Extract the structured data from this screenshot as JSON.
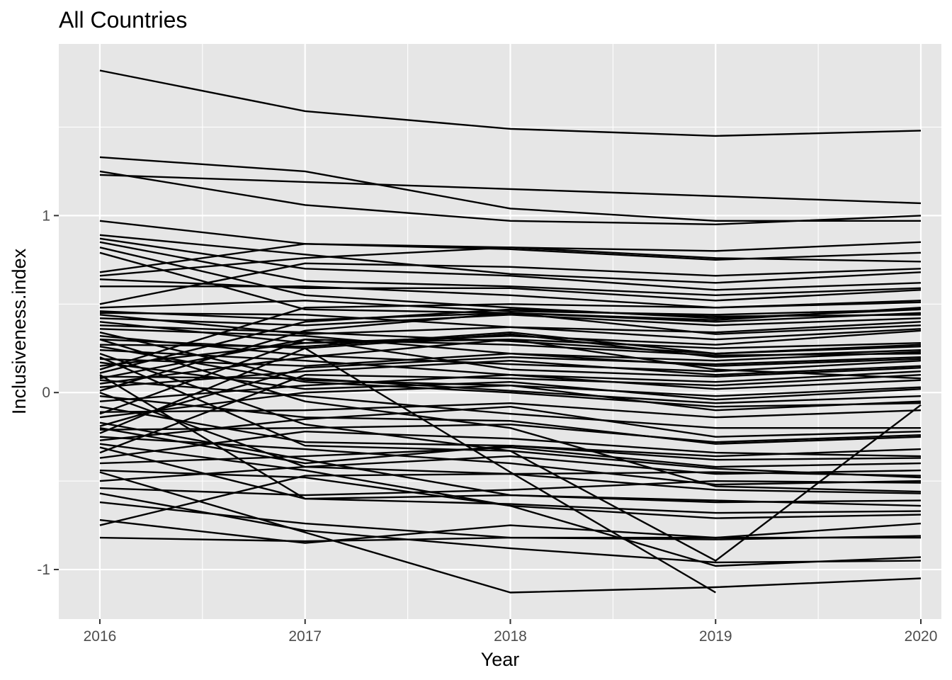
{
  "chart_data": {
    "type": "line",
    "title": "All Countries",
    "xlabel": "Year",
    "ylabel": "Inclusiveness.index",
    "x": [
      2016,
      2017,
      2018,
      2019,
      2020
    ],
    "x_ticks": [
      "2016",
      "2017",
      "2018",
      "2019",
      "2020"
    ],
    "y_ticks": [
      {
        "value": 1,
        "label": "1"
      },
      {
        "value": 0,
        "label": "0"
      },
      {
        "value": -1,
        "label": "-1"
      }
    ],
    "xlim": [
      2015.8,
      2020.1
    ],
    "ylim": [
      -1.28,
      1.97
    ],
    "grid": true,
    "line_color": "#000000",
    "panel_color": "#e6e6e6",
    "grid_color": "#ffffff",
    "series": [
      {
        "values": [
          1.82,
          1.59,
          1.49,
          1.45,
          1.48
        ]
      },
      {
        "values": [
          1.33,
          1.25,
          1.04,
          0.97,
          0.97
        ]
      },
      {
        "values": [
          1.25,
          1.06,
          0.97,
          0.95,
          1.0
        ]
      },
      {
        "values": [
          1.23,
          1.19,
          1.15,
          1.11,
          1.07
        ]
      },
      {
        "values": [
          0.97,
          0.84,
          0.82,
          0.8,
          0.85
        ]
      },
      {
        "values": [
          0.89,
          0.78,
          0.67,
          0.62,
          0.68
        ]
      },
      {
        "values": [
          0.87,
          0.7,
          0.66,
          0.58,
          0.62
        ]
      },
      {
        "values": [
          0.85,
          0.63,
          0.6,
          0.55,
          0.59
        ]
      },
      {
        "values": [
          0.82,
          0.55,
          0.48,
          0.42,
          0.47
        ]
      },
      {
        "values": [
          0.79,
          0.47,
          0.45,
          0.4,
          0.45
        ]
      },
      {
        "values": [
          0.68,
          0.84,
          0.81,
          0.75,
          0.79
        ]
      },
      {
        "values": [
          0.66,
          0.76,
          0.82,
          0.76,
          0.74
        ]
      },
      {
        "values": [
          0.64,
          0.59,
          0.59,
          0.52,
          0.58
        ]
      },
      {
        "values": [
          0.6,
          0.6,
          0.55,
          0.48,
          0.52
        ]
      },
      {
        "values": [
          0.5,
          0.73,
          0.71,
          0.66,
          0.7
        ]
      },
      {
        "values": [
          0.48,
          0.52,
          0.46,
          0.44,
          0.47
        ]
      },
      {
        "values": [
          0.46,
          0.41,
          0.45,
          0.41,
          0.48
        ]
      },
      {
        "values": [
          0.44,
          0.33,
          0.37,
          0.34,
          0.4
        ]
      },
      {
        "values": [
          0.42,
          0.38,
          0.44,
          0.38,
          0.42
        ]
      },
      {
        "values": [
          0.4,
          0.28,
          0.32,
          0.27,
          0.35
        ]
      },
      {
        "values": [
          0.38,
          0.34,
          0.29,
          0.22,
          0.27
        ]
      },
      {
        "values": [
          0.36,
          0.32,
          0.22,
          0.18,
          0.23
        ]
      },
      {
        "values": [
          0.34,
          0.07,
          0.04,
          -0.02,
          0.03
        ]
      },
      {
        "values": [
          0.32,
          0.21,
          0.16,
          0.12,
          0.18
        ]
      },
      {
        "values": [
          0.3,
          -0.05,
          -0.2,
          -0.53,
          -0.56
        ]
      },
      {
        "values": [
          0.27,
          0.26,
          0.34,
          0.22,
          0.26
        ]
      },
      {
        "values": [
          0.24,
          0.18,
          0.1,
          0.06,
          0.12
        ]
      },
      {
        "values": [
          0.22,
          -0.18,
          -0.33,
          -0.43,
          -0.48
        ]
      },
      {
        "values": [
          0.19,
          0.15,
          0.22,
          0.15,
          0.19
        ]
      },
      {
        "values": [
          0.17,
          0.02,
          0.06,
          -0.04,
          0.02
        ]
      },
      {
        "values": [
          0.15,
          0.28,
          0.3,
          0.25,
          0.28
        ]
      },
      {
        "values": [
          0.13,
          0.48,
          0.5,
          0.48,
          0.51
        ]
      },
      {
        "values": [
          0.11,
          0.4,
          0.47,
          0.43,
          0.44
        ]
      },
      {
        "values": [
          0.09,
          0.08,
          0.01,
          -0.06,
          -0.02
        ]
      },
      {
        "values": [
          0.07,
          -0.02,
          -0.12,
          -0.2,
          -0.2
        ]
      },
      {
        "values": [
          0.05,
          0.2,
          0.3,
          0.13,
          0.08
        ]
      },
      {
        "values": [
          0.03,
          0.12,
          0.18,
          0.1,
          0.15
        ]
      },
      {
        "values": [
          0.01,
          0.35,
          0.45,
          0.33,
          0.38
        ]
      },
      {
        "values": [
          -0.02,
          -0.14,
          -0.16,
          -0.29,
          -0.25
        ]
      },
      {
        "values": [
          -0.05,
          0.04,
          0.1,
          0.02,
          0.07
        ]
      },
      {
        "values": [
          -0.08,
          -0.28,
          -0.3,
          -0.36,
          -0.32
        ]
      },
      {
        "values": [
          -0.11,
          -0.1,
          -0.06,
          -0.14,
          -0.1
        ]
      },
      {
        "values": [
          -0.14,
          0.0,
          0.04,
          -0.1,
          -0.05
        ]
      },
      {
        "values": [
          -0.17,
          -0.38,
          -0.58,
          -0.62,
          -0.61
        ]
      },
      {
        "values": [
          -0.19,
          0.14,
          0.2,
          0.16,
          0.2
        ]
      },
      {
        "values": [
          -0.21,
          -0.2,
          -0.18,
          -0.28,
          -0.24
        ]
      },
      {
        "values": [
          -0.23,
          0.25,
          0.33,
          0.2,
          0.24
        ]
      },
      {
        "values": [
          -0.25,
          -0.32,
          -0.4,
          -0.52,
          -0.5
        ]
      },
      {
        "values": [
          -0.27,
          -0.15,
          -0.08,
          -0.25,
          -0.22
        ]
      },
      {
        "values": [
          -0.29,
          -0.44,
          -0.64,
          -0.98,
          -0.93
        ]
      },
      {
        "values": [
          -0.31,
          -0.6,
          -0.58,
          -0.61,
          -0.64
        ]
      },
      {
        "values": [
          -0.34,
          0.1,
          0.08,
          0.04,
          0.1
        ]
      },
      {
        "values": [
          -0.37,
          -0.22,
          -0.26,
          -0.34,
          -0.36
        ]
      },
      {
        "values": [
          -0.4,
          -0.36,
          -0.31,
          -0.42,
          -0.4
        ]
      },
      {
        "values": [
          -0.44,
          -0.48,
          -0.64,
          -0.71,
          -0.69
        ]
      },
      {
        "values": [
          -0.5,
          -0.42,
          -0.36,
          -0.46,
          -0.44
        ]
      },
      {
        "values": [
          -0.54,
          -0.58,
          -0.55,
          -0.5,
          -0.51
        ]
      },
      {
        "values": [
          -0.57,
          -0.78,
          -0.88,
          -0.96,
          -0.95
        ]
      },
      {
        "values": [
          -0.62,
          -0.74,
          -0.82,
          -0.83,
          -0.81
        ]
      },
      {
        "values": [
          -0.72,
          -0.85,
          -0.75,
          -0.82,
          -0.74
        ]
      },
      {
        "values": [
          -0.75,
          -0.47,
          -0.46,
          -0.45,
          -0.47
        ]
      },
      {
        "values": [
          -0.82,
          -0.84,
          -0.82,
          -0.82,
          -0.82
        ]
      },
      {
        "values": [
          0.2,
          -0.3,
          -0.33,
          -0.95,
          -0.07
        ]
      },
      {
        "values": [
          -0.45,
          -0.79,
          -1.13,
          -1.1,
          -1.05
        ]
      },
      {
        "values": [
          0.3,
          0.25,
          -0.45,
          -1.13,
          null
        ]
      },
      {
        "values": [
          0.1,
          -0.6,
          -0.63,
          -0.68,
          -0.67
        ]
      },
      {
        "values": [
          0.0,
          -0.42,
          -0.46,
          -0.55,
          -0.57
        ]
      },
      {
        "values": [
          -0.12,
          0.3,
          0.27,
          0.21,
          0.22
        ]
      },
      {
        "values": [
          0.45,
          0.44,
          0.37,
          0.3,
          0.36
        ]
      },
      {
        "values": [
          0.26,
          0.06,
          0.0,
          -0.08,
          -0.06
        ]
      },
      {
        "values": [
          0.08,
          0.3,
          0.13,
          0.09,
          0.14
        ]
      },
      {
        "values": [
          -0.2,
          -0.4,
          -0.3,
          -0.38,
          -0.37
        ]
      }
    ]
  }
}
